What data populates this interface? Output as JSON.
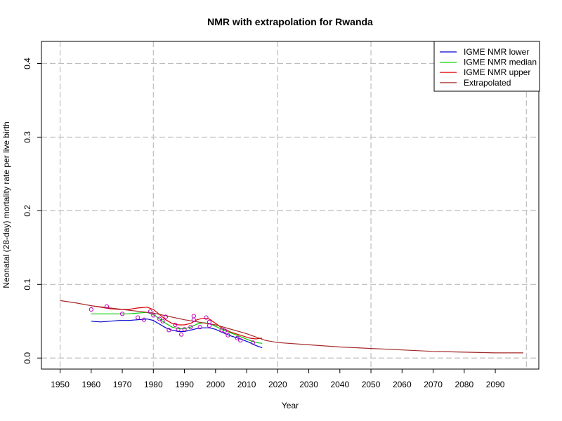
{
  "chart_data": {
    "type": "line",
    "title": "NMR with extrapolation for Rwanda",
    "xlabel": "Year",
    "ylabel": "Neonatal (28-day) mortality rate per live birth",
    "xlim": [
      1944,
      2104
    ],
    "ylim": [
      -0.015,
      0.43
    ],
    "x_ticks": [
      1950,
      1960,
      1970,
      1980,
      1990,
      2000,
      2010,
      2020,
      2030,
      2040,
      2050,
      2060,
      2070,
      2080,
      2090
    ],
    "y_ticks": [
      0.0,
      0.1,
      0.2,
      0.3,
      0.4
    ],
    "x_grid": [
      1950,
      1980,
      2020,
      2050,
      2100
    ],
    "y_grid": [
      0.0,
      0.1,
      0.2,
      0.3,
      0.4
    ],
    "grid": true,
    "legend_position": "top-right",
    "series": [
      {
        "name": "IGME NMR lower",
        "color": "#0000cc",
        "x": [
          1960,
          1963,
          1966,
          1969,
          1972,
          1975,
          1978,
          1980,
          1982,
          1984,
          1986,
          1988,
          1990,
          1992,
          1994,
          1996,
          1998,
          2000,
          2002,
          2005,
          2008,
          2011,
          2013,
          2015
        ],
        "y": [
          0.05,
          0.049,
          0.05,
          0.051,
          0.051,
          0.052,
          0.053,
          0.051,
          0.046,
          0.041,
          0.038,
          0.036,
          0.036,
          0.038,
          0.04,
          0.041,
          0.041,
          0.039,
          0.035,
          0.03,
          0.026,
          0.021,
          0.017,
          0.014
        ]
      },
      {
        "name": "IGME NMR median",
        "color": "#00cc00",
        "x": [
          1960,
          1963,
          1966,
          1969,
          1972,
          1975,
          1978,
          1980,
          1982,
          1984,
          1986,
          1988,
          1990,
          1992,
          1994,
          1996,
          1998,
          2000,
          2002,
          2005,
          2008,
          2011,
          2013,
          2015
        ],
        "y": [
          0.06,
          0.06,
          0.06,
          0.06,
          0.06,
          0.061,
          0.062,
          0.059,
          0.053,
          0.047,
          0.042,
          0.04,
          0.04,
          0.042,
          0.046,
          0.048,
          0.047,
          0.043,
          0.039,
          0.034,
          0.029,
          0.024,
          0.021,
          0.02
        ]
      },
      {
        "name": "IGME NMR upper",
        "color": "#dd0000",
        "x": [
          1960,
          1963,
          1966,
          1969,
          1972,
          1975,
          1978,
          1980,
          1982,
          1984,
          1986,
          1988,
          1990,
          1992,
          1994,
          1996,
          1998,
          2000,
          2002,
          2005,
          2008,
          2011,
          2013,
          2015
        ],
        "y": [
          0.071,
          0.069,
          0.067,
          0.066,
          0.066,
          0.068,
          0.069,
          0.066,
          0.059,
          0.052,
          0.047,
          0.045,
          0.045,
          0.047,
          0.052,
          0.054,
          0.053,
          0.047,
          0.041,
          0.035,
          0.031,
          0.027,
          0.026,
          0.027
        ]
      },
      {
        "name": "Extrapolated",
        "color": "#a52a2a",
        "x": [
          1950,
          1955,
          1960,
          1970,
          1980,
          1990,
          2000,
          2010,
          2016,
          2020,
          2030,
          2040,
          2050,
          2060,
          2070,
          2080,
          2090,
          2099
        ],
        "y": [
          0.078,
          0.075,
          0.071,
          0.066,
          0.061,
          0.052,
          0.045,
          0.033,
          0.024,
          0.021,
          0.018,
          0.015,
          0.013,
          0.011,
          0.009,
          0.008,
          0.007,
          0.007
        ]
      }
    ],
    "points": {
      "color": "#bb00bb",
      "x": [
        1960,
        1965,
        1970,
        1975,
        1977,
        1979,
        1980,
        1982,
        1983,
        1984,
        1985,
        1987,
        1988,
        1989,
        1990,
        1992,
        1993,
        1993,
        1995,
        1997,
        1998,
        1998,
        2002,
        2003,
        2004,
        2007,
        2008,
        2012
      ],
      "y": [
        0.066,
        0.07,
        0.06,
        0.055,
        0.052,
        0.063,
        0.058,
        0.053,
        0.05,
        0.056,
        0.038,
        0.045,
        0.039,
        0.032,
        0.039,
        0.042,
        0.052,
        0.057,
        0.042,
        0.055,
        0.049,
        0.044,
        0.038,
        0.037,
        0.031,
        0.027,
        0.024,
        0.021
      ]
    }
  }
}
